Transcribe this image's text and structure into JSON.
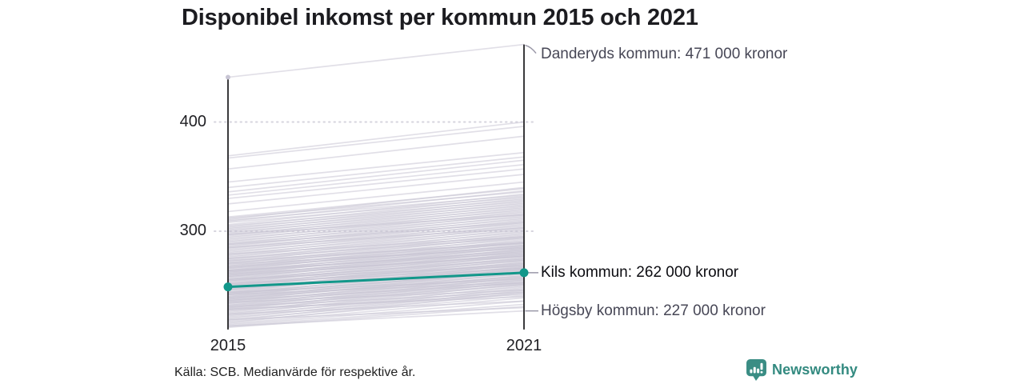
{
  "title": "Disponibel inkomst per kommun 2015 och 2021",
  "source_note": "Källa: SCB. Medianvärde för respektive år.",
  "branding": {
    "name": "Newsworthy",
    "icon": "newsworthy-speech-bubble-bar-chart-icon",
    "color": "#338a80"
  },
  "axes": {
    "x_labels": [
      "2015",
      "2021"
    ],
    "y_ticks": [
      "400",
      "300"
    ]
  },
  "annotations": {
    "danderyd": "Danderyds kommun: 471 000 kronor",
    "kil": "Kils kommun: 262 000 kronor",
    "hogsby": "Högsby kommun: 227 000 kronor"
  },
  "colors": {
    "highlight_teal": "#12978a",
    "line_gray": "#c8c5d4",
    "connector_gray": "#9a98a8",
    "axis_dark": "#17171a",
    "grid_dot": "#d6d4de"
  },
  "chart_data": {
    "type": "line",
    "subtype": "slope",
    "title": "Disponibel inkomst per kommun 2015 och 2021",
    "x": [
      2015,
      2021
    ],
    "unit": "tusen kronor (medianvärde disponibel inkomst)",
    "y_tick_values": [
      400,
      300
    ],
    "y_domain": [
      212,
      471
    ],
    "grid": "dotted",
    "highlight_series": {
      "name": "Kils kommun",
      "values": [
        249,
        262
      ],
      "label": "Kils kommun: 262 000 kronor"
    },
    "labeled_series": [
      {
        "name": "Danderyds kommun",
        "values": [
          441,
          471
        ],
        "label": "Danderyds kommun: 471 000 kronor"
      },
      {
        "name": "Högsby kommun",
        "values": [
          213,
          227
        ],
        "label": "Högsby kommun: 227 000 kronor"
      }
    ],
    "background_lines": [
      [
        369,
        400
      ],
      [
        367,
        396
      ],
      [
        357,
        387
      ],
      [
        345,
        372
      ],
      [
        340,
        368
      ],
      [
        336,
        365
      ],
      [
        333,
        361
      ],
      [
        330,
        357
      ],
      [
        325,
        352
      ],
      [
        318,
        345
      ],
      [
        313,
        339
      ],
      [
        312,
        336
      ],
      [
        311,
        340
      ],
      [
        310,
        333
      ],
      [
        309,
        337
      ],
      [
        308,
        331
      ],
      [
        306,
        334
      ],
      [
        305,
        329
      ],
      [
        304,
        332
      ],
      [
        303,
        327
      ],
      [
        302,
        330
      ],
      [
        301,
        325
      ],
      [
        300,
        328
      ],
      [
        299,
        323
      ],
      [
        298,
        326
      ],
      [
        297,
        321
      ],
      [
        296,
        324
      ],
      [
        295,
        319
      ],
      [
        294,
        322
      ],
      [
        293,
        317
      ],
      [
        292,
        320
      ],
      [
        291,
        315
      ],
      [
        290,
        318
      ],
      [
        289,
        313
      ],
      [
        288,
        316
      ],
      [
        287,
        311
      ],
      [
        286,
        314
      ],
      [
        285,
        309
      ],
      [
        284,
        312
      ],
      [
        283,
        307
      ],
      [
        282,
        310
      ],
      [
        281,
        305
      ],
      [
        280,
        308
      ],
      [
        279,
        303
      ],
      [
        278,
        306
      ],
      [
        277,
        301
      ],
      [
        276,
        304
      ],
      [
        275,
        299
      ],
      [
        274,
        302
      ],
      [
        273,
        297
      ],
      [
        272,
        300
      ],
      [
        271,
        295
      ],
      [
        270,
        298
      ],
      [
        269,
        293
      ],
      [
        268,
        296
      ],
      [
        267,
        291
      ],
      [
        266,
        294
      ],
      [
        265,
        289
      ],
      [
        264,
        292
      ],
      [
        263,
        287
      ],
      [
        262,
        290
      ],
      [
        261,
        285
      ],
      [
        260,
        288
      ],
      [
        259,
        283
      ],
      [
        258,
        286
      ],
      [
        257,
        281
      ],
      [
        256,
        284
      ],
      [
        255,
        279
      ],
      [
        254,
        282
      ],
      [
        253,
        277
      ],
      [
        252,
        280
      ],
      [
        251,
        275
      ],
      [
        250,
        278
      ],
      [
        249,
        273
      ],
      [
        248,
        276
      ],
      [
        247,
        271
      ],
      [
        246,
        274
      ],
      [
        245,
        269
      ],
      [
        244,
        272
      ],
      [
        243,
        267
      ],
      [
        242,
        270
      ],
      [
        241,
        265
      ],
      [
        240,
        268
      ],
      [
        239,
        263
      ],
      [
        238,
        266
      ],
      [
        237,
        261
      ],
      [
        236,
        264
      ],
      [
        235,
        259
      ],
      [
        234,
        262
      ],
      [
        233,
        257
      ],
      [
        232,
        260
      ],
      [
        231,
        255
      ],
      [
        230,
        258
      ],
      [
        229,
        253
      ],
      [
        228,
        256
      ],
      [
        227,
        251
      ],
      [
        226,
        254
      ],
      [
        225,
        249
      ],
      [
        224,
        252
      ],
      [
        223,
        247
      ],
      [
        222,
        250
      ],
      [
        221,
        245
      ],
      [
        220,
        248
      ],
      [
        219,
        243
      ],
      [
        218,
        246
      ],
      [
        217,
        241
      ],
      [
        216,
        244
      ],
      [
        215,
        239
      ],
      [
        214,
        236
      ],
      [
        213,
        233
      ],
      [
        212,
        231
      ],
      [
        268,
        289
      ],
      [
        266,
        287
      ],
      [
        264,
        285
      ],
      [
        262,
        283
      ],
      [
        260,
        281
      ],
      [
        258,
        279
      ],
      [
        256,
        277
      ],
      [
        254,
        275
      ],
      [
        252,
        273
      ],
      [
        250,
        271
      ],
      [
        248,
        269
      ],
      [
        246,
        267
      ],
      [
        244,
        265
      ],
      [
        242,
        263
      ],
      [
        240,
        261
      ],
      [
        238,
        259
      ],
      [
        236,
        257
      ],
      [
        234,
        255
      ],
      [
        232,
        253
      ],
      [
        230,
        251
      ],
      [
        247,
        266
      ],
      [
        243,
        262
      ],
      [
        239,
        258
      ],
      [
        251,
        270
      ],
      [
        255,
        274
      ],
      [
        259,
        278
      ],
      [
        263,
        282
      ],
      [
        267,
        286
      ],
      [
        271,
        290
      ],
      [
        275,
        294
      ],
      [
        297,
        315
      ],
      [
        285,
        303
      ],
      [
        273,
        289
      ],
      [
        261,
        277
      ],
      [
        249,
        264
      ],
      [
        237,
        252
      ],
      [
        228,
        242
      ],
      [
        288,
        308
      ],
      [
        279,
        295
      ],
      [
        270,
        284
      ],
      [
        252,
        266
      ],
      [
        244,
        256
      ],
      [
        231,
        244
      ],
      [
        224,
        236
      ],
      [
        219,
        230
      ],
      [
        264,
        280
      ],
      [
        256,
        268
      ],
      [
        242,
        253
      ],
      [
        235,
        246
      ],
      [
        229,
        240
      ]
    ]
  }
}
